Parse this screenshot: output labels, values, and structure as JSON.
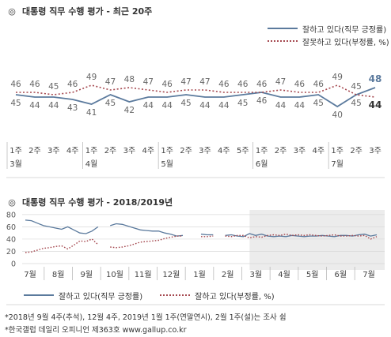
{
  "chart1": {
    "title_mark": "◎",
    "title": "대통령 직무 수행 평가 - 최근 20주",
    "legend": [
      "잘하고 있다(직무 긍정률)",
      "잘못하고 있다(부정률, %)"
    ]
  },
  "chart2": {
    "title_mark": "◎",
    "title": "대통령 직무 수행 평가 - 2018/2019년",
    "legend": [
      "잘하고 있다(직무 긍정률)",
      "잘하고 있다(부정률, %)"
    ]
  },
  "footnotes": [
    "*2018년 9월 4주(추석), 12월 4주, 2019년 1월 1주(연말연시), 2월 1주(설)는 조사 쉼",
    "*한국갤럽 데일리 오피니언 제363호 www.gallup.co.kr"
  ],
  "colors": {
    "positive": "#5b7a9d",
    "negative": "#a5484f",
    "shade": "#ececec"
  },
  "chart_data": [
    {
      "type": "line",
      "title": "대통령 직무 수행 평가 - 최근 20주",
      "categories": [
        "1주",
        "2주",
        "3주",
        "4주",
        "1주",
        "2주",
        "3주",
        "4주",
        "1주",
        "2주",
        "3주",
        "4주",
        "5주",
        "1주",
        "2주",
        "3주",
        "4주",
        "1주",
        "2주",
        "3주"
      ],
      "month_labels": [
        {
          "index": 0,
          "label": "3월"
        },
        {
          "index": 4,
          "label": "4월"
        },
        {
          "index": 8,
          "label": "5월"
        },
        {
          "index": 13,
          "label": "6월"
        },
        {
          "index": 17,
          "label": "7월"
        }
      ],
      "series": [
        {
          "name": "잘하고 있다(직무 긍정률)",
          "values": [
            45,
            44,
            44,
            43,
            41,
            45,
            42,
            44,
            44,
            45,
            44,
            44,
            45,
            46,
            44,
            44,
            45,
            40,
            45,
            48
          ]
        },
        {
          "name": "잘못하고 있다(부정률, %)",
          "values": [
            46,
            46,
            45,
            46,
            49,
            47,
            48,
            47,
            46,
            47,
            47,
            46,
            46,
            46,
            47,
            46,
            46,
            49,
            45,
            44
          ]
        }
      ],
      "ylim": [
        30,
        65
      ],
      "grid": false,
      "legend_position": "top-right"
    },
    {
      "type": "line",
      "title": "대통령 직무 수행 평가 - 2018/2019년",
      "x_ticks": [
        "7월",
        "8월",
        "9월",
        "10월",
        "11월",
        "12월",
        "1월",
        "2월",
        "3월",
        "4월",
        "5월",
        "6월",
        "7월"
      ],
      "yticks": [
        0,
        20,
        40,
        60,
        80
      ],
      "ylim": [
        0,
        85
      ],
      "shaded_range": [
        "3월",
        "7월"
      ],
      "series": [
        {
          "name": "잘하고 있다(직무 긍정률)",
          "values": [
            71,
            70,
            66,
            62,
            60,
            58,
            56,
            60,
            55,
            50,
            49,
            53,
            60,
            null,
            62,
            65,
            64,
            61,
            58,
            55,
            54,
            53,
            53,
            50,
            48,
            45,
            46,
            null,
            null,
            48,
            47,
            47,
            null,
            46,
            47,
            45,
            44,
            49,
            46,
            48,
            45,
            44,
            45,
            44,
            46,
            45,
            44,
            45,
            45,
            46,
            45,
            44,
            46,
            46,
            45,
            47,
            48,
            45,
            47
          ]
        },
        {
          "name": "잘하고 있다(부정률, %)",
          "values": [
            18,
            19,
            22,
            25,
            26,
            28,
            29,
            24,
            30,
            37,
            36,
            40,
            31,
            null,
            27,
            26,
            27,
            29,
            32,
            35,
            36,
            37,
            38,
            41,
            43,
            45,
            45,
            null,
            null,
            44,
            44,
            45,
            null,
            45,
            44,
            46,
            46,
            42,
            44,
            43,
            46,
            47,
            46,
            48,
            46,
            47,
            46,
            47,
            46,
            45,
            46,
            47,
            45,
            45,
            46,
            45,
            46,
            40,
            44
          ]
        }
      ],
      "grid": true,
      "legend_position": "bottom"
    }
  ]
}
